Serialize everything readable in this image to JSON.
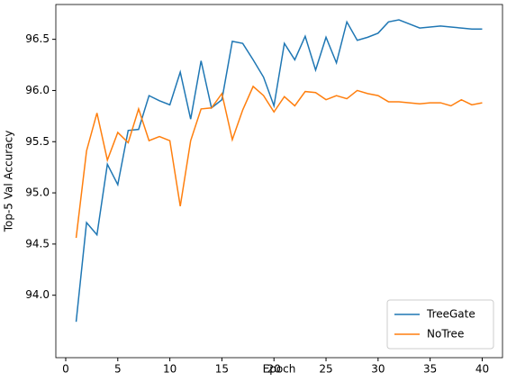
{
  "chart_data": {
    "type": "line",
    "x_label": "Epoch",
    "y_label": "Top-5 Val Accuracy",
    "x": [
      1,
      2,
      3,
      4,
      5,
      6,
      7,
      8,
      9,
      10,
      11,
      12,
      13,
      14,
      15,
      16,
      17,
      18,
      19,
      20,
      21,
      22,
      23,
      24,
      25,
      26,
      27,
      28,
      29,
      30,
      31,
      32,
      33,
      34,
      35,
      36,
      37,
      38,
      39,
      40
    ],
    "series": [
      {
        "name": "TreeGate",
        "color": "#1f77b4",
        "values": [
          93.74,
          94.71,
          94.59,
          95.28,
          95.08,
          95.61,
          95.62,
          95.95,
          95.9,
          95.86,
          96.18,
          95.72,
          96.29,
          95.83,
          95.91,
          96.48,
          96.46,
          96.3,
          96.13,
          95.85,
          96.46,
          96.3,
          96.53,
          96.2,
          96.52,
          96.27,
          96.67,
          96.49,
          96.52,
          96.56,
          96.67,
          96.69,
          96.65,
          96.61,
          96.62,
          96.63,
          96.62,
          96.61,
          96.6,
          96.6
        ]
      },
      {
        "name": "NoTree",
        "color": "#ff7f0e",
        "values": [
          94.56,
          95.41,
          95.78,
          95.32,
          95.59,
          95.49,
          95.82,
          95.51,
          95.55,
          95.51,
          94.87,
          95.51,
          95.82,
          95.83,
          95.97,
          95.52,
          95.81,
          96.04,
          95.95,
          95.79,
          95.94,
          95.85,
          95.99,
          95.98,
          95.91,
          95.95,
          95.92,
          96.0,
          95.97,
          95.95,
          95.89,
          95.89,
          95.88,
          95.87,
          95.88,
          95.88,
          95.85,
          95.91,
          95.86,
          95.88
        ]
      }
    ],
    "xlim": [
      -0.95,
      41.95
    ],
    "xticks": [
      0,
      5,
      10,
      15,
      20,
      25,
      30,
      35,
      40
    ],
    "ylim": [
      93.39,
      96.84
    ],
    "yticks": [
      {
        "value": 94,
        "label": "94.0"
      },
      94.5,
      {
        "value": 95,
        "label": "95.0"
      },
      95.5,
      {
        "value": 96,
        "label": "96.0"
      },
      96.5
    ],
    "legend": "lower right"
  }
}
